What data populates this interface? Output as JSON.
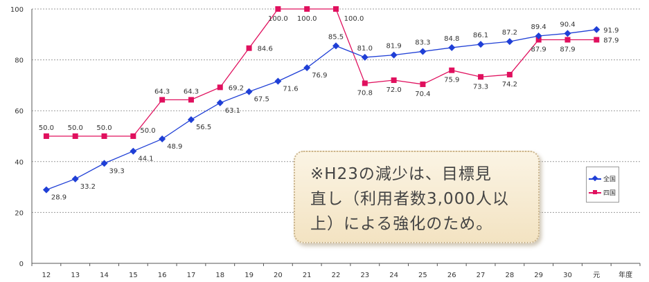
{
  "chart_data": {
    "type": "line",
    "categories": [
      "12",
      "13",
      "14",
      "15",
      "16",
      "17",
      "18",
      "19",
      "20",
      "21",
      "22",
      "23",
      "24",
      "25",
      "26",
      "27",
      "28",
      "29",
      "30",
      "元"
    ],
    "x_unit_label": "年度",
    "ylim": [
      0,
      100
    ],
    "yticks": [
      0,
      20,
      40,
      60,
      80,
      100
    ],
    "grid": true,
    "legend_placement": "right",
    "series": [
      {
        "name": "全国",
        "color": "#1f3fd6",
        "marker": "diamond",
        "values": [
          28.9,
          33.2,
          39.3,
          44.1,
          48.9,
          56.5,
          63.1,
          67.5,
          71.6,
          76.9,
          85.5,
          81.0,
          81.9,
          83.3,
          84.8,
          86.1,
          87.2,
          89.4,
          90.4,
          91.9
        ],
        "labels": [
          "28.9",
          "33.2",
          "39.3",
          "44.1",
          "48.9",
          "56.5",
          "63.1",
          "67.5",
          "71.6",
          "76.9",
          "85.5",
          "81.0",
          "81.9",
          "83.3",
          "84.8",
          "86.1",
          "87.2",
          "89.4",
          "90.4",
          "91.9"
        ]
      },
      {
        "name": "四国",
        "color": "#e0105e",
        "marker": "square",
        "values": [
          50.0,
          50.0,
          50.0,
          50.0,
          64.3,
          64.3,
          69.2,
          84.6,
          100.0,
          100.0,
          100.0,
          70.8,
          72.0,
          70.4,
          75.9,
          73.3,
          74.2,
          87.9,
          87.9,
          87.9
        ],
        "labels": [
          "50.0",
          "50.0",
          "50.0",
          "50.0",
          "64.3",
          "64.3",
          "69.2",
          "84.6",
          "100.0",
          "100.0",
          "100.0",
          "70.8",
          "72.0",
          "70.4",
          "75.9",
          "73.3",
          "74.2",
          "87.9",
          "87.9",
          "87.9"
        ]
      }
    ],
    "annotation": "※H23の減少は、目標見\n直し（利用者数3,000人以\n上）による強化のため。"
  }
}
